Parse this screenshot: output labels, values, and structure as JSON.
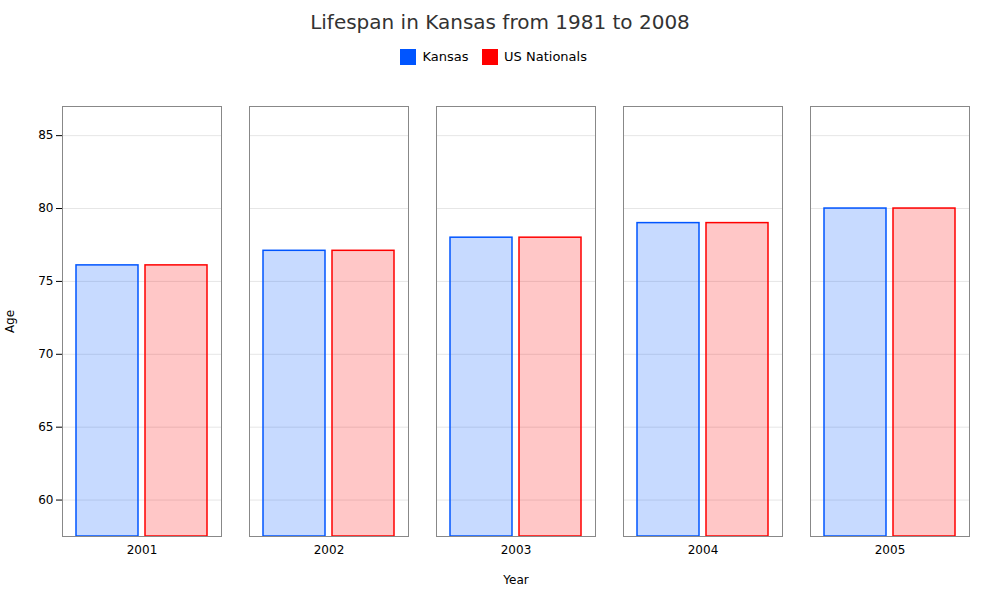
{
  "chart_data": {
    "type": "bar",
    "title": "Lifespan in Kansas from 1981 to 2008",
    "xlabel": "Year",
    "ylabel": "Age",
    "categories": [
      "2001",
      "2002",
      "2003",
      "2004",
      "2005"
    ],
    "series": [
      {
        "name": "Kansas",
        "color": "#0055ff",
        "values": [
          76.1,
          77.1,
          78.0,
          79.0,
          80.0
        ]
      },
      {
        "name": "US Nationals",
        "color": "#ff0000",
        "values": [
          76.1,
          77.1,
          78.0,
          79.0,
          80.0
        ]
      }
    ],
    "ylim": [
      57.5,
      87
    ],
    "yticks": [
      60,
      65,
      70,
      75,
      80,
      85
    ],
    "grid": true,
    "legend": "top"
  }
}
